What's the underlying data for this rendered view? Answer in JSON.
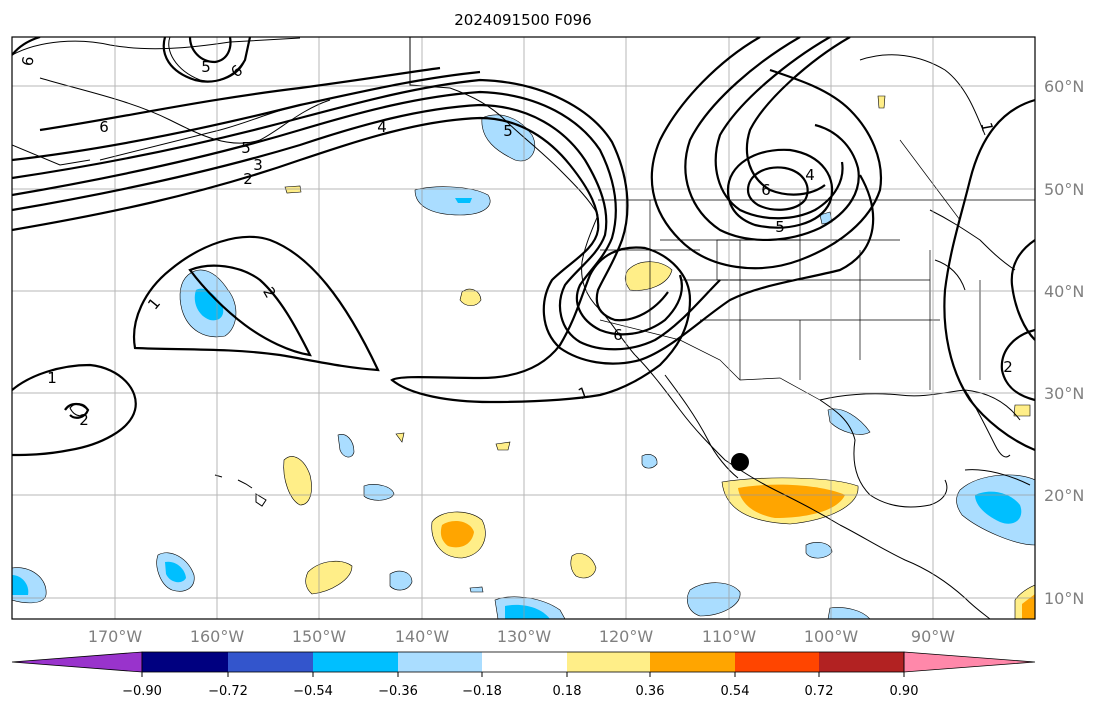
{
  "title": "2024091500 F096",
  "lat_labels": [
    "60°N",
    "50°N",
    "40°N",
    "30°N",
    "20°N",
    "10°N"
  ],
  "lon_labels": [
    "170°W",
    "160°W",
    "150°W",
    "140°W",
    "130°W",
    "120°W",
    "110°W",
    "100°W",
    "90°W"
  ],
  "colorbar": {
    "tick_labels": [
      "−0.90",
      "−0.72",
      "−0.54",
      "−0.36",
      "−0.18",
      "0.18",
      "0.36",
      "0.54",
      "0.72",
      "0.90"
    ],
    "colors": [
      "#9933cc",
      "#000080",
      "#3355cc",
      "#00bfff",
      "#aaddff",
      "#ffffff",
      "#ffee88",
      "#ffa500",
      "#ff4500",
      "#b22222",
      "#ff88aa"
    ]
  },
  "contour_labels": [
    "6",
    "5",
    "6",
    "6",
    "5",
    "4",
    "3",
    "2",
    "1",
    "2",
    "1",
    "2",
    "6",
    "5",
    "4",
    "5",
    "6",
    "1",
    "2",
    "1"
  ],
  "colors": {
    "land_outline": "#000000",
    "grid": "#999999",
    "contour": "#000000",
    "marker": "#000000"
  }
}
